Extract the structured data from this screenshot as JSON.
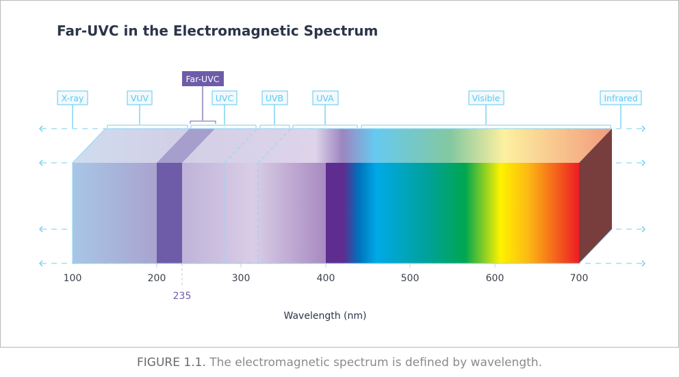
{
  "title": "Far-UVC in the Electromagnetic Spectrum",
  "bands": [
    {
      "label": "X-ray"
    },
    {
      "label": "VUV"
    },
    {
      "label": "Far-UVC"
    },
    {
      "label": "UVC"
    },
    {
      "label": "UVB"
    },
    {
      "label": "UVA"
    },
    {
      "label": "Visible"
    },
    {
      "label": "Infrared"
    }
  ],
  "axis": {
    "ticks": [
      "100",
      "200",
      "300",
      "400",
      "500",
      "600",
      "700"
    ],
    "highlight_tick": "235",
    "label": "Wavelength (nm)"
  },
  "caption": {
    "prefix": "FIGURE 1.1.",
    "text": " The electromagnetic spectrum is defined by wavelength."
  },
  "colors": {
    "accent": "#5bc8ef",
    "far_uvc": "#6e5ca8",
    "infrared_side": "#783e3e"
  }
}
